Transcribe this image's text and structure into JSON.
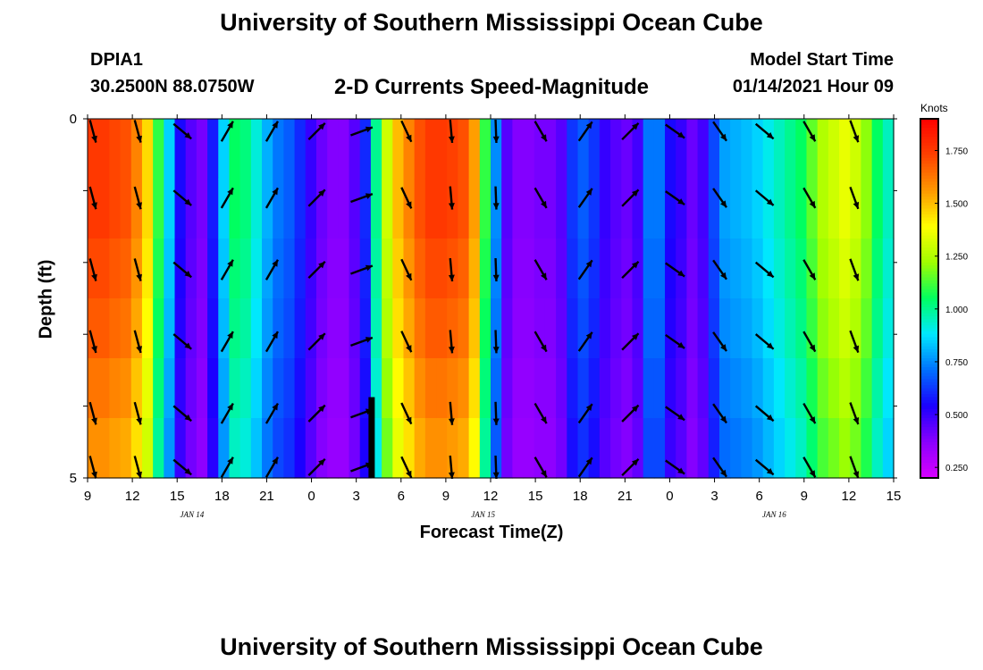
{
  "header": {
    "title": "University of Southern Mississippi Ocean Cube",
    "station": "DPIA1",
    "coordinates": "30.2500N 88.0750W",
    "subtitle": "2-D Currents Speed-Magnitude",
    "model_start_label": "Model Start Time",
    "model_start_value": "01/14/2021 Hour 09"
  },
  "footer": {
    "title": "University of Southern Mississippi Ocean Cube"
  },
  "colors": {
    "scale": [
      "#d800ff",
      "#8a00ff",
      "#1b00ff",
      "#0070ff",
      "#00e8ff",
      "#00ff60",
      "#a0ff00",
      "#ffff00",
      "#ff9800",
      "#ff4000",
      "#ff0000"
    ],
    "arrow": "#000000",
    "bar_marker": "#000000"
  },
  "chart_data": {
    "type": "heatmap",
    "title": "2-D Currents Speed-Magnitude",
    "xlabel": "Forecast Time(Z)",
    "ylabel": "Depth (ft)",
    "units": "Knots",
    "x_ticks": [
      "9",
      "12",
      "15",
      "18",
      "21",
      "0",
      "3",
      "6",
      "9",
      "12",
      "15",
      "18",
      "21",
      "0",
      "3",
      "6",
      "9",
      "12",
      "15"
    ],
    "date_labels": [
      {
        "label": "JAN 14",
        "hour_index": 7
      },
      {
        "label": "JAN 15",
        "hour_index": 26.5
      },
      {
        "label": "JAN 16",
        "hour_index": 46
      }
    ],
    "y_ticks": [
      "0",
      "5"
    ],
    "ylim": [
      0,
      5
    ],
    "xlim_hours": [
      0,
      54
    ],
    "colorbar": {
      "range": [
        0.2,
        1.9
      ],
      "ticks": [
        "1.750",
        "1.500",
        "1.250",
        "1.000",
        "0.750",
        "0.500",
        "0.250"
      ],
      "tick_values": [
        1.75,
        1.5,
        1.25,
        1.0,
        0.75,
        0.5,
        0.25
      ]
    },
    "speed_columns": [
      1.75,
      1.75,
      1.72,
      1.7,
      1.6,
      1.45,
      1.1,
      0.85,
      0.55,
      0.45,
      0.4,
      0.58,
      0.85,
      1.05,
      1.02,
      0.92,
      0.8,
      0.72,
      0.68,
      0.6,
      0.5,
      0.42,
      0.38,
      0.38,
      0.45,
      0.6,
      1.0,
      1.3,
      1.5,
      1.6,
      1.7,
      1.75,
      1.75,
      1.73,
      1.7,
      1.55,
      1.1,
      0.75,
      0.45,
      0.38,
      0.38,
      0.4,
      0.4,
      0.45,
      0.62,
      0.68,
      0.62,
      0.5,
      0.45,
      0.42,
      0.48,
      0.72,
      0.72,
      0.55,
      0.5,
      0.42,
      0.48,
      0.65,
      0.78,
      0.8,
      0.82,
      0.85,
      0.9,
      0.95,
      1.0,
      1.05,
      1.15,
      1.25,
      1.3,
      1.35,
      1.3,
      1.2,
      1.05,
      0.95
    ],
    "depth_factors": [
      1.0,
      1.0,
      0.98,
      0.96,
      0.93,
      0.9
    ],
    "arrow_hours": [
      0,
      3,
      6,
      9,
      12,
      15,
      18,
      21,
      24,
      27,
      30,
      33,
      36,
      39,
      42,
      45,
      48,
      51
    ],
    "arrow_directions_deg": [
      165,
      165,
      130,
      30,
      30,
      45,
      70,
      155,
      175,
      178,
      150,
      35,
      45,
      125,
      145,
      130,
      150,
      160
    ],
    "vertical_bar": {
      "hour": 19
    }
  }
}
